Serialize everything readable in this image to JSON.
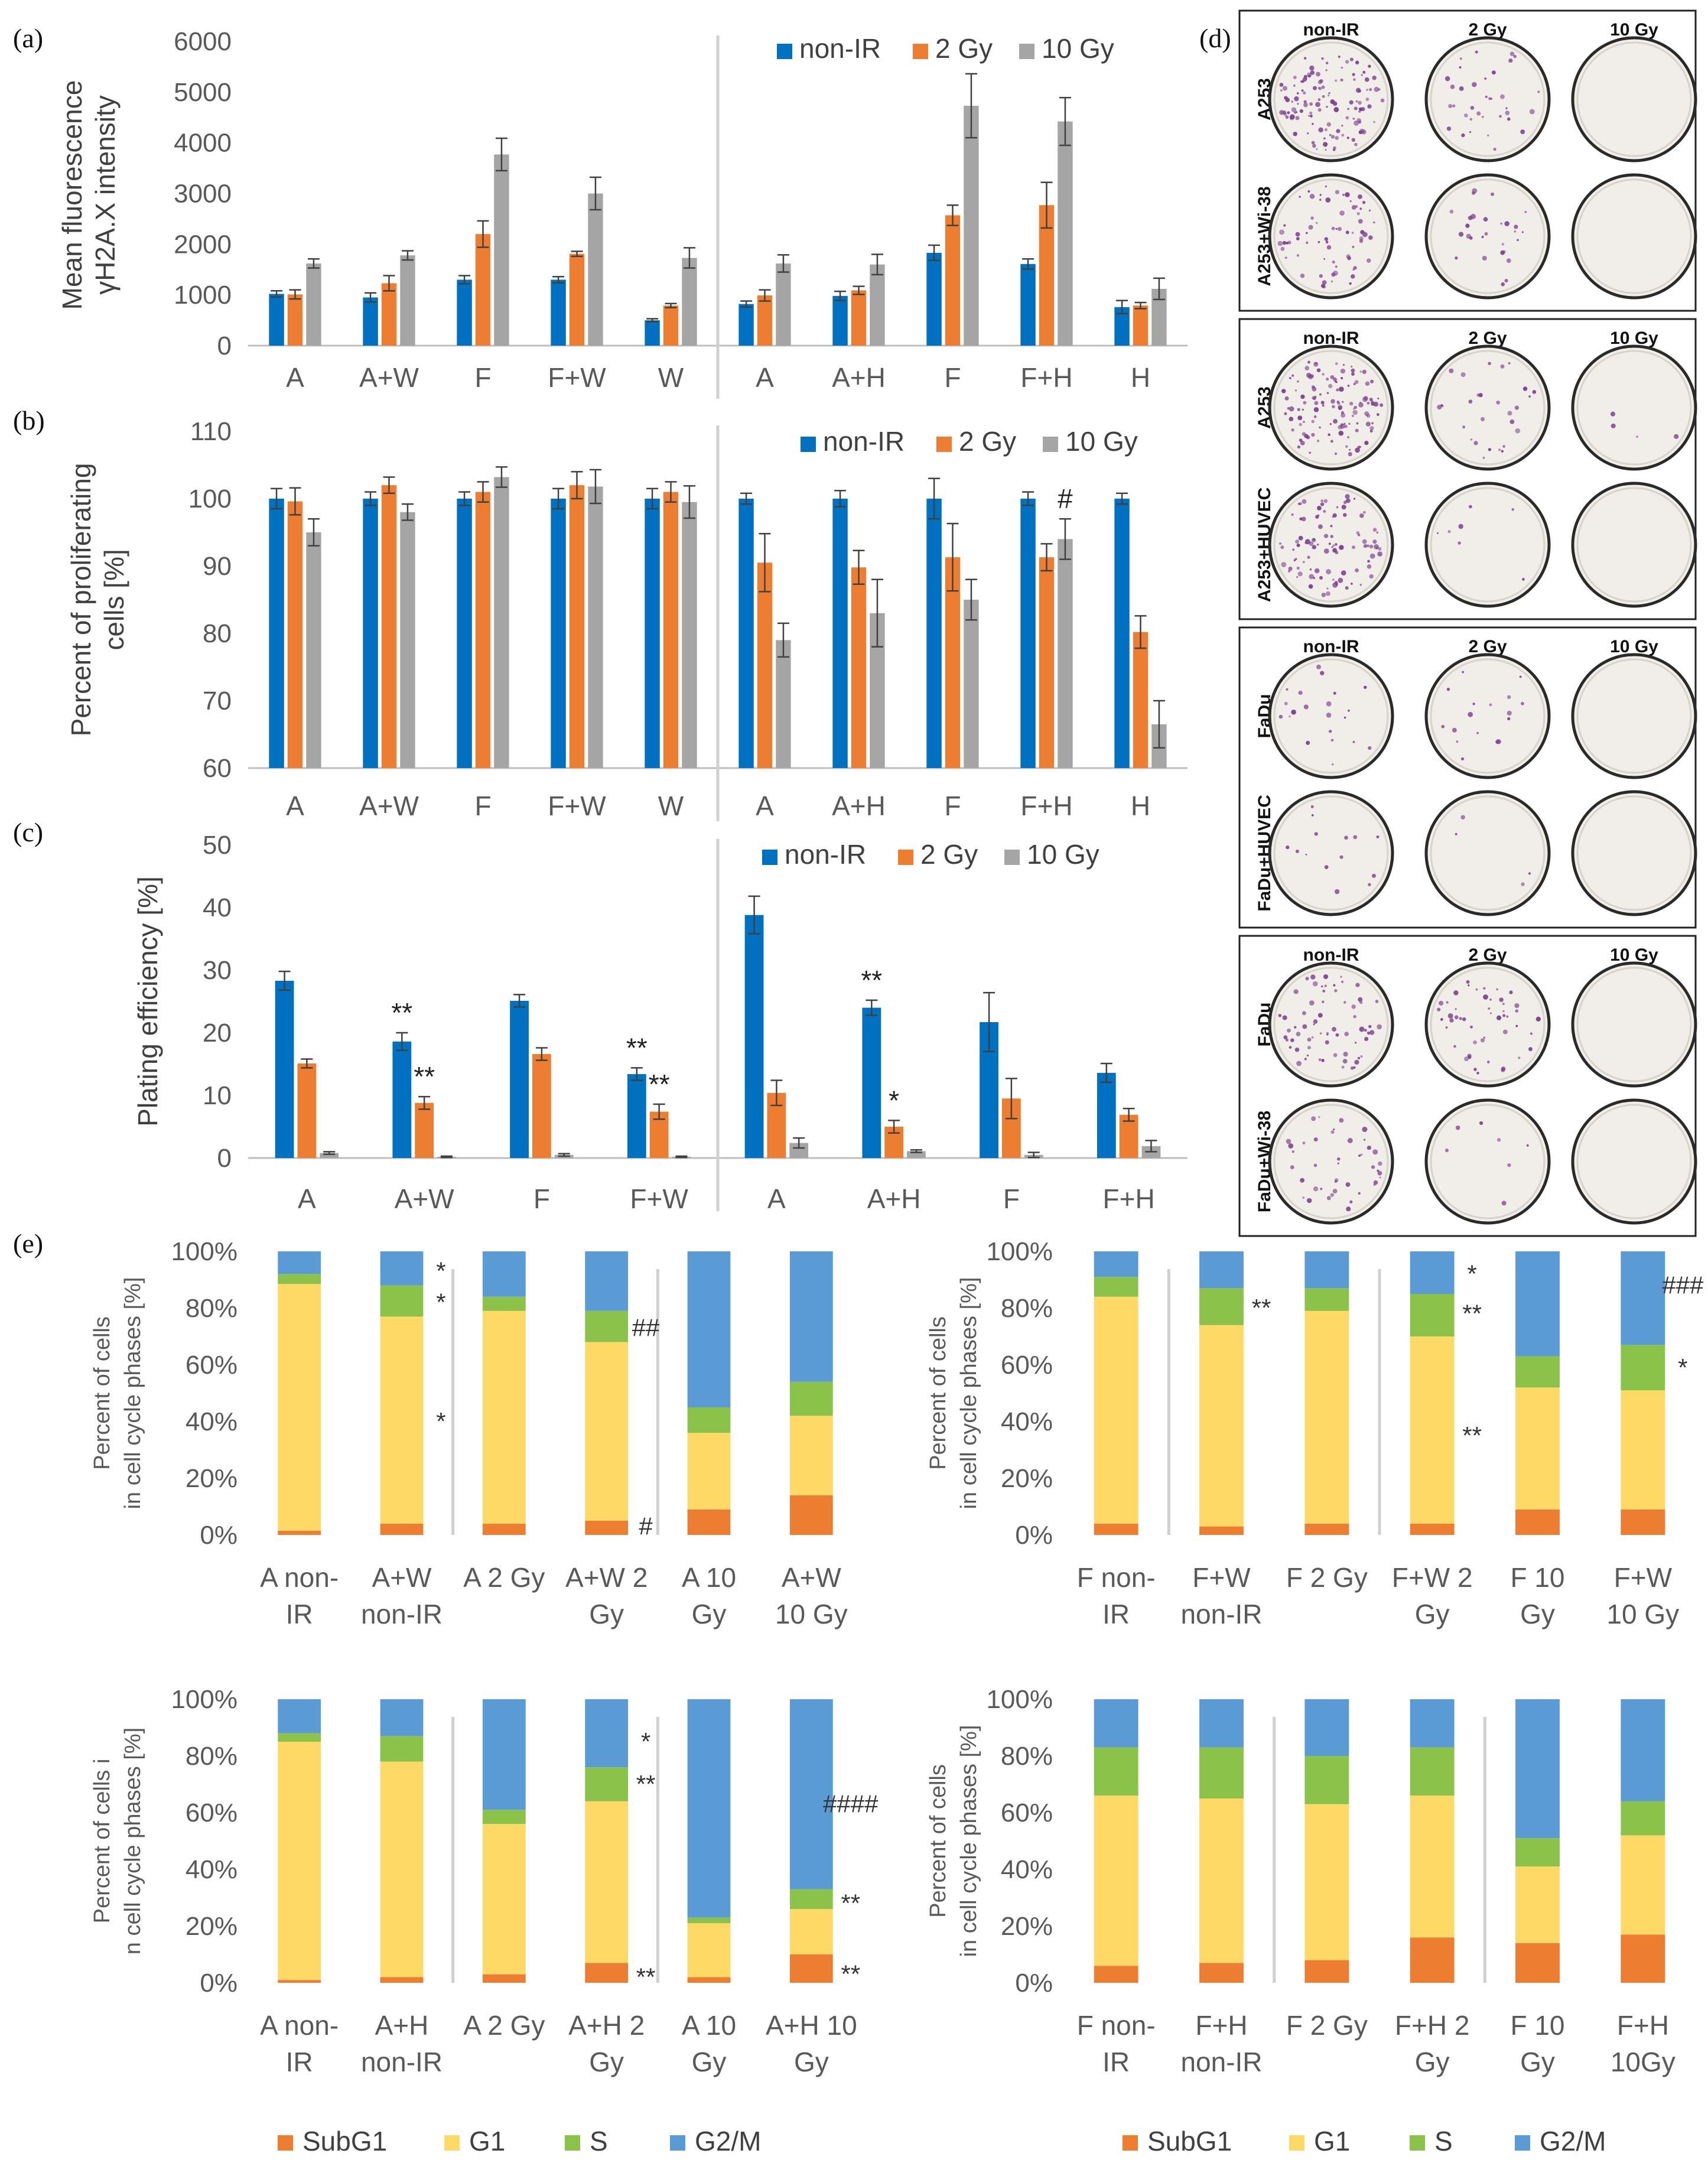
{
  "figure": {
    "panel_labels": [
      "(a)",
      "(b)",
      "(c)",
      "(d)",
      "(e)"
    ]
  },
  "colors": {
    "nonIR": "#0070C0",
    "gy2": "#ED7D31",
    "gy10": "#A5A5A5",
    "subG1": "#ED7D31",
    "G1": "#FFD966",
    "S": "#8BC34A",
    "G2M": "#5B9BD5",
    "axis": "#7f7f7f",
    "text": "#595959"
  },
  "chart_data": [
    {
      "id": "a",
      "type": "bar",
      "ylabel": "Mean fluorescence γH2A.X intensity",
      "ylabel_lines": [
        "Mean fluorescence",
        "γH2A.X intensity"
      ],
      "ylim": [
        0,
        6000
      ],
      "yticks": [
        0,
        1000,
        2000,
        3000,
        4000,
        5000,
        6000
      ],
      "legend": [
        "non-IR",
        "2 Gy",
        "10 Gy"
      ],
      "categories": [
        "A",
        "A+W",
        "F",
        "F+W",
        "W",
        "A",
        "A+H",
        "F",
        "F+H",
        "H"
      ],
      "divider_after": 5,
      "series": [
        {
          "name": "non-IR",
          "values": [
            1020,
            950,
            1300,
            1300,
            500,
            820,
            980,
            1830,
            1610,
            760
          ],
          "errors": [
            60,
            90,
            80,
            60,
            30,
            60,
            90,
            150,
            100,
            130
          ]
        },
        {
          "name": "2 Gy",
          "values": [
            1010,
            1230,
            2200,
            1810,
            790,
            990,
            1090,
            2570,
            2770,
            790
          ],
          "errors": [
            90,
            150,
            260,
            50,
            40,
            110,
            80,
            200,
            450,
            60
          ]
        },
        {
          "name": "10 Gy",
          "values": [
            1620,
            1780,
            3770,
            3000,
            1730,
            1620,
            1600,
            4730,
            4420,
            1120
          ],
          "errors": [
            90,
            90,
            320,
            320,
            200,
            170,
            200,
            630,
            470,
            210
          ]
        }
      ],
      "annotations": []
    },
    {
      "id": "b",
      "type": "bar",
      "ylabel": "Percent of proliferating cells [%]",
      "ylabel_lines": [
        "Percent of proliferating",
        "cells [%]"
      ],
      "ylim": [
        60,
        110
      ],
      "yticks": [
        60,
        70,
        80,
        90,
        100,
        110
      ],
      "legend": [
        "non-IR",
        "2 Gy",
        "10 Gy"
      ],
      "categories": [
        "A",
        "A+W",
        "F",
        "F+W",
        "W",
        "A",
        "A+H",
        "F",
        "F+H",
        "H"
      ],
      "divider_after": 5,
      "series": [
        {
          "name": "non-IR",
          "values": [
            100,
            100,
            100,
            100,
            100,
            100,
            100,
            100,
            100,
            100
          ],
          "errors": [
            1.5,
            1,
            1,
            1.5,
            1.5,
            0.8,
            1.2,
            3,
            1,
            0.8
          ]
        },
        {
          "name": "2 Gy",
          "values": [
            99.6,
            102,
            101,
            102,
            101,
            90.5,
            89.8,
            91.3,
            91.3,
            80.2
          ],
          "errors": [
            2,
            1.2,
            1.5,
            2,
            1.5,
            4.3,
            2.5,
            5,
            2,
            2.4
          ]
        },
        {
          "name": "10 Gy",
          "values": [
            95,
            98,
            103.2,
            101.8,
            99.5,
            79,
            83,
            85,
            94,
            66.5
          ],
          "errors": [
            2,
            1.2,
            1.5,
            2.5,
            2.4,
            2.5,
            5,
            3,
            3,
            3.5
          ]
        }
      ],
      "annotations": [
        {
          "text": "#",
          "category": 8,
          "series": 2
        }
      ]
    },
    {
      "id": "c",
      "type": "bar",
      "ylabel": "Plating efficiency [%]",
      "ylabel_lines": [
        "Plating efficiency [%]"
      ],
      "ylim": [
        0,
        50
      ],
      "yticks": [
        0,
        10,
        20,
        30,
        40,
        50
      ],
      "legend": [
        "non-IR",
        "2 Gy",
        "10 Gy"
      ],
      "categories": [
        "A",
        "A+W",
        "F",
        "F+W",
        "A",
        "A+H",
        "F",
        "F+H"
      ],
      "divider_after": 4,
      "series": [
        {
          "name": "non-IR",
          "values": [
            28.3,
            18.6,
            25.1,
            13.4,
            38.8,
            24.0,
            21.7,
            13.6
          ],
          "errors": [
            1.5,
            1.4,
            1.0,
            1.0,
            3.0,
            1.2,
            4.7,
            1.5
          ]
        },
        {
          "name": "2 Gy",
          "values": [
            15.1,
            8.8,
            16.6,
            7.4,
            10.4,
            5.0,
            9.5,
            6.9
          ],
          "errors": [
            0.7,
            1.0,
            1.0,
            1.2,
            2.0,
            1.0,
            3.2,
            1.0
          ]
        },
        {
          "name": "10 Gy",
          "values": [
            0.8,
            0.2,
            0.5,
            0.2,
            2.4,
            1.1,
            0.5,
            1.9
          ],
          "errors": [
            0.2,
            0.1,
            0.2,
            0.1,
            0.8,
            0.2,
            0.4,
            0.9
          ]
        }
      ],
      "annotations": [
        {
          "text": "**",
          "category": 1,
          "series": 0
        },
        {
          "text": "**",
          "category": 1,
          "series": 1
        },
        {
          "text": "**",
          "category": 3,
          "series": 0
        },
        {
          "text": "**",
          "category": 3,
          "series": 1
        },
        {
          "text": "**",
          "category": 5,
          "series": 0
        },
        {
          "text": "*",
          "category": 5,
          "series": 1
        }
      ]
    },
    {
      "id": "e1",
      "type": "bar",
      "stacked": true,
      "ylabel_lines": [
        "Percent of cells",
        "in cell cycle phases [%]"
      ],
      "ylim": [
        0,
        100
      ],
      "yticks": [
        "0%",
        "20%",
        "40%",
        "60%",
        "80%",
        "100%"
      ],
      "categories": [
        [
          "A non-",
          "IR"
        ],
        [
          "A+W",
          "non-IR"
        ],
        [
          "A 2 Gy",
          ""
        ],
        [
          "A+W 2",
          "Gy"
        ],
        [
          "A 10",
          "Gy"
        ],
        [
          "A+W",
          "10 Gy"
        ]
      ],
      "dividers_after": [
        2,
        4
      ],
      "series": [
        {
          "name": "SubG1",
          "values": [
            1.5,
            4,
            4,
            5,
            9,
            14
          ]
        },
        {
          "name": "G1",
          "values": [
            87,
            73,
            75,
            63,
            27,
            28
          ]
        },
        {
          "name": "S",
          "values": [
            3.5,
            11,
            5,
            11,
            9,
            12
          ]
        },
        {
          "name": "G2/M",
          "values": [
            8,
            12,
            16,
            21,
            55,
            46
          ]
        }
      ],
      "annotations": [
        {
          "text": "*",
          "category": 1,
          "y": 93
        },
        {
          "text": "*",
          "category": 1,
          "y": 82
        },
        {
          "text": "*",
          "category": 1,
          "y": 40
        },
        {
          "text": "##",
          "category": 3,
          "y": 73
        },
        {
          "text": "#",
          "category": 3,
          "y": 3
        }
      ]
    },
    {
      "id": "e2",
      "type": "bar",
      "stacked": true,
      "ylabel_lines": [
        "Percent of cells",
        "in cell cycle phases [%]"
      ],
      "ylim": [
        0,
        100
      ],
      "yticks": [
        "0%",
        "20%",
        "40%",
        "60%",
        "80%",
        "100%"
      ],
      "categories": [
        [
          "F non-",
          "IR"
        ],
        [
          "F+W",
          "non-IR"
        ],
        [
          "F 2 Gy",
          ""
        ],
        [
          "F+W 2",
          "Gy"
        ],
        [
          "F 10",
          "Gy"
        ],
        [
          "F+W",
          "10 Gy"
        ]
      ],
      "dividers_after": [
        1,
        3
      ],
      "series": [
        {
          "name": "SubG1",
          "values": [
            4,
            3,
            4,
            4,
            9,
            9
          ]
        },
        {
          "name": "G1",
          "values": [
            80,
            71,
            75,
            66,
            43,
            42
          ]
        },
        {
          "name": "S",
          "values": [
            7,
            13,
            8,
            15,
            11,
            16
          ]
        },
        {
          "name": "G2/M",
          "values": [
            9,
            13,
            13,
            15,
            37,
            33
          ]
        }
      ],
      "annotations": [
        {
          "text": "**",
          "category": 1,
          "y": 80
        },
        {
          "text": "*",
          "category": 3,
          "y": 92
        },
        {
          "text": "**",
          "category": 3,
          "y": 78
        },
        {
          "text": "**",
          "category": 3,
          "y": 35
        },
        {
          "text": "###",
          "category": 5,
          "y": 88
        },
        {
          "text": "*",
          "category": 5,
          "y": 59
        }
      ]
    },
    {
      "id": "e3",
      "type": "bar",
      "stacked": true,
      "ylabel_lines": [
        "Percent of cells i",
        "n cell cycle phases [%]"
      ],
      "ylim": [
        0,
        100
      ],
      "yticks": [
        "0%",
        "20%",
        "40%",
        "60%",
        "80%",
        "100%"
      ],
      "categories": [
        [
          "A non-",
          "IR"
        ],
        [
          "A+H",
          "non-IR"
        ],
        [
          "A 2 Gy",
          ""
        ],
        [
          "A+H 2",
          "Gy"
        ],
        [
          "A 10",
          "Gy"
        ],
        [
          "A+H 10",
          "Gy"
        ]
      ],
      "dividers_after": [
        2,
        4
      ],
      "series": [
        {
          "name": "SubG1",
          "values": [
            1,
            2,
            3,
            7,
            2,
            10
          ]
        },
        {
          "name": "G1",
          "values": [
            84,
            76,
            53,
            57,
            19,
            16
          ]
        },
        {
          "name": "S",
          "values": [
            3,
            9,
            5,
            12,
            2,
            7
          ]
        },
        {
          "name": "G2/M",
          "values": [
            12,
            13,
            39,
            24,
            77,
            67
          ]
        }
      ],
      "annotations": [
        {
          "text": "*",
          "category": 3,
          "y": 85
        },
        {
          "text": "**",
          "category": 3,
          "y": 70
        },
        {
          "text": "**",
          "category": 3,
          "y": 2
        },
        {
          "text": "####",
          "category": 5,
          "y": 63
        },
        {
          "text": "**",
          "category": 5,
          "y": 28
        },
        {
          "text": "**",
          "category": 5,
          "y": 3
        }
      ]
    },
    {
      "id": "e4",
      "type": "bar",
      "stacked": true,
      "ylabel_lines": [
        "Percent of cells",
        "in cell cycle phases [%]"
      ],
      "ylim": [
        0,
        100
      ],
      "yticks": [
        "0%",
        "20%",
        "40%",
        "60%",
        "80%",
        "100%"
      ],
      "categories": [
        [
          "F non-",
          "IR"
        ],
        [
          "F+H",
          "non-IR"
        ],
        [
          "F 2 Gy",
          ""
        ],
        [
          "F+H 2",
          "Gy"
        ],
        [
          "F 10",
          "Gy"
        ],
        [
          "F+H",
          "10Gy"
        ]
      ],
      "dividers_after": [
        2,
        4
      ],
      "series": [
        {
          "name": "SubG1",
          "values": [
            6,
            7,
            8,
            16,
            14,
            17
          ]
        },
        {
          "name": "G1",
          "values": [
            60,
            58,
            55,
            50,
            27,
            35
          ]
        },
        {
          "name": "S",
          "values": [
            17,
            18,
            17,
            17,
            10,
            12
          ]
        },
        {
          "name": "G2/M",
          "values": [
            17,
            17,
            20,
            17,
            49,
            36
          ]
        }
      ],
      "annotations": []
    }
  ],
  "cell_cycle_legend": [
    "SubG1",
    "G1",
    "S",
    "G2/M"
  ],
  "clonogenic": {
    "columns": [
      "non-IR",
      "2 Gy",
      "10 Gy"
    ],
    "blocks": [
      {
        "rows": [
          "A253",
          "A253+Wi-38"
        ],
        "density": [
          [
            0.9,
            0.25,
            0.0
          ],
          [
            0.5,
            0.2,
            0.0
          ]
        ]
      },
      {
        "rows": [
          "A253",
          "A253+HUVEC"
        ],
        "density": [
          [
            0.9,
            0.2,
            0.03
          ],
          [
            0.7,
            0.05,
            0.0
          ]
        ]
      },
      {
        "rows": [
          "FaDu",
          "FaDu+HUVEC"
        ],
        "density": [
          [
            0.15,
            0.12,
            0.0
          ],
          [
            0.1,
            0.03,
            0.0
          ]
        ]
      },
      {
        "rows": [
          "FaDu",
          "FaDu+Wi-38"
        ],
        "density": [
          [
            0.5,
            0.35,
            0.0
          ],
          [
            0.3,
            0.05,
            0.0
          ]
        ]
      }
    ]
  }
}
